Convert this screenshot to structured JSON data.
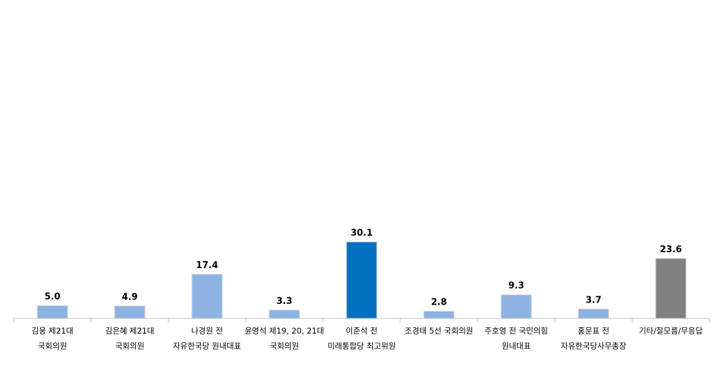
{
  "chart_data": {
    "type": "bar",
    "categories": [
      [
        "김웅 제21대",
        "국회의원"
      ],
      [
        "김은혜 제21대",
        "국회의원"
      ],
      [
        "나경원 전",
        "자유한국당 원내대표"
      ],
      [
        "윤영석 제19, 20, 21대",
        "국회의원"
      ],
      [
        "이준석 전",
        "미래통합당 최고위원"
      ],
      [
        "조경태 5선 국회의원"
      ],
      [
        "주호영 전 국민의힘",
        "원내대표"
      ],
      [
        "홍문표 전",
        "자유한국당사무총장"
      ],
      [
        "기타/잘모름/무응답"
      ]
    ],
    "values": [
      5.0,
      4.9,
      17.4,
      3.3,
      30.1,
      2.8,
      9.3,
      3.7,
      23.6
    ],
    "value_labels": [
      "5.0",
      "4.9",
      "17.4",
      "3.3",
      "30.1",
      "2.8",
      "9.3",
      "3.7",
      "23.6"
    ],
    "colors": [
      "#8db3e2",
      "#8db3e2",
      "#8db3e2",
      "#8db3e2",
      "#0070c0",
      "#8db3e2",
      "#8db3e2",
      "#8db3e2",
      "#808080"
    ],
    "ylim": [
      0,
      40
    ],
    "grid": false,
    "legend": "none"
  }
}
